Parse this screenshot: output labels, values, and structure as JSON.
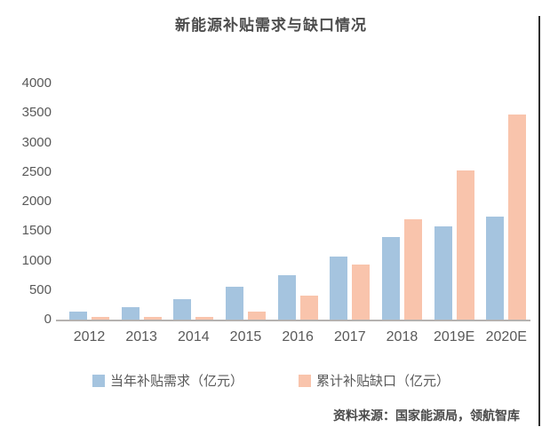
{
  "title": "新能源补贴需求与缺口情况",
  "source": "资料来源：国家能源局，领航智库",
  "colors": {
    "demand": "#a5c4df",
    "gap": "#f9c4ac",
    "axis": "#b5b2b0",
    "text": "#595959"
  },
  "legend": [
    {
      "label": "当年补贴需求（亿元）",
      "series": "demand"
    },
    {
      "label": "累计补贴缺口（亿元）",
      "series": "gap"
    }
  ],
  "chart_data": {
    "type": "bar",
    "title": "新能源补贴需求与缺口情况",
    "categories": [
      "2012",
      "2013",
      "2014",
      "2015",
      "2016",
      "2017",
      "2018",
      "2019E",
      "2020E"
    ],
    "series": [
      {
        "name": "当年补贴需求（亿元）",
        "key": "demand",
        "color": "#a5c4df",
        "values": [
          130,
          210,
          350,
          560,
          750,
          1070,
          1400,
          1580,
          1750
        ]
      },
      {
        "name": "累计补贴缺口（亿元）",
        "key": "gap",
        "color": "#f9c4ac",
        "values": [
          20,
          30,
          30,
          130,
          400,
          930,
          1700,
          2520,
          3470
        ]
      }
    ],
    "xlabel": "",
    "ylabel": "",
    "ylim": [
      0,
      4000
    ],
    "ytick_step": 500,
    "yticks": [
      0,
      500,
      1000,
      1500,
      2000,
      2500,
      3000,
      3500,
      4000
    ],
    "grid": false,
    "legend_position": "bottom",
    "source_note": "资料来源：国家能源局，领航智库"
  }
}
